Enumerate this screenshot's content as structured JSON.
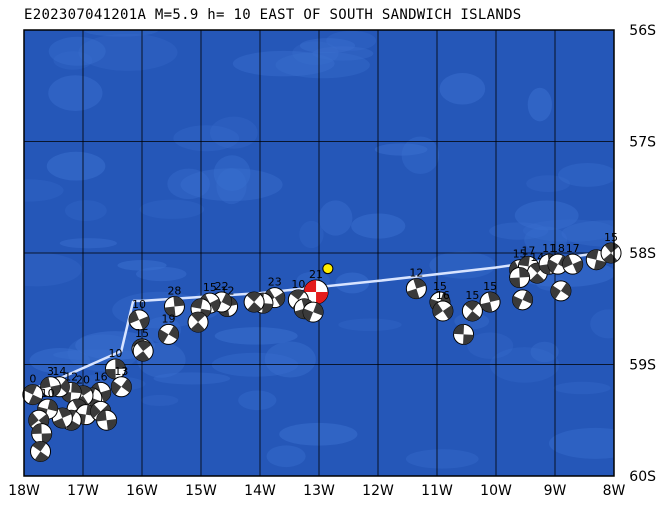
{
  "title": "E202307041201A M=5.9 h= 10 EAST OF SOUTH SANDWICH ISLANDS",
  "map": {
    "lon_range": [
      -18,
      -8
    ],
    "lat_range": [
      -60,
      -56
    ],
    "lon_ticks": [
      "18W",
      "17W",
      "16W",
      "15W",
      "14W",
      "13W",
      "12W",
      "11W",
      "10W",
      "9W",
      "8W"
    ],
    "lat_ticks": [
      "56S",
      "57S",
      "58S",
      "59S",
      "60S"
    ],
    "colors": {
      "ocean": "#2557b8",
      "ocean_light": "#3a6fcf",
      "grid": "#000000",
      "trench_line": "#d8e4ff",
      "main_event": "#e31c1c",
      "epicenter": "#ffee00"
    }
  },
  "trench": [
    [
      -16.15,
      -58.43
    ],
    [
      -16.0,
      -58.43
    ],
    [
      -14.0,
      -58.36
    ],
    [
      -12.0,
      -58.25
    ],
    [
      -10.0,
      -58.13
    ],
    [
      -8.0,
      -57.98
    ]
  ],
  "trench_west": [
    [
      -16.15,
      -58.43
    ],
    [
      -16.35,
      -58.88
    ],
    [
      -17.5,
      -59.15
    ],
    [
      -18.0,
      -59.25
    ]
  ],
  "epicenter": {
    "lon": -12.85,
    "lat": -58.14
  },
  "events": [
    {
      "lon": -13.05,
      "lat": -58.35,
      "num": "21",
      "main": true
    },
    {
      "lon": -13.35,
      "lat": -58.42,
      "num": "10"
    },
    {
      "lon": -13.25,
      "lat": -58.5,
      "num": ""
    },
    {
      "lon": -13.1,
      "lat": -58.53,
      "num": ""
    },
    {
      "lon": -13.75,
      "lat": -58.4,
      "num": "23"
    },
    {
      "lon": -13.95,
      "lat": -58.45,
      "num": ""
    },
    {
      "lon": -14.1,
      "lat": -58.44,
      "num": ""
    },
    {
      "lon": -14.55,
      "lat": -58.48,
      "num": "12"
    },
    {
      "lon": -14.65,
      "lat": -58.44,
      "num": "22"
    },
    {
      "lon": -14.85,
      "lat": -58.45,
      "num": "15"
    },
    {
      "lon": -15.0,
      "lat": -58.5,
      "num": ""
    },
    {
      "lon": -15.05,
      "lat": -58.62,
      "num": ""
    },
    {
      "lon": -15.45,
      "lat": -58.48,
      "num": "28"
    },
    {
      "lon": -15.55,
      "lat": -58.73,
      "num": "19"
    },
    {
      "lon": -16.05,
      "lat": -58.6,
      "num": "10"
    },
    {
      "lon": -16.0,
      "lat": -58.86,
      "num": "15"
    },
    {
      "lon": -15.98,
      "lat": -58.88,
      "num": ""
    },
    {
      "lon": -16.45,
      "lat": -59.04,
      "num": "10"
    },
    {
      "lon": -16.35,
      "lat": -59.2,
      "num": "13"
    },
    {
      "lon": -16.7,
      "lat": -59.25,
      "num": "16"
    },
    {
      "lon": -16.85,
      "lat": -59.3,
      "num": ""
    },
    {
      "lon": -17.0,
      "lat": -59.28,
      "num": "20"
    },
    {
      "lon": -17.2,
      "lat": -59.25,
      "num": "12"
    },
    {
      "lon": -17.4,
      "lat": -59.2,
      "num": "14"
    },
    {
      "lon": -17.55,
      "lat": -59.2,
      "num": "3"
    },
    {
      "lon": -17.85,
      "lat": -59.27,
      "num": "0"
    },
    {
      "lon": -17.1,
      "lat": -59.4,
      "num": ""
    },
    {
      "lon": -16.95,
      "lat": -59.45,
      "num": ""
    },
    {
      "lon": -16.7,
      "lat": -59.42,
      "num": ""
    },
    {
      "lon": -16.6,
      "lat": -59.5,
      "num": ""
    },
    {
      "lon": -17.2,
      "lat": -59.5,
      "num": ""
    },
    {
      "lon": -17.35,
      "lat": -59.48,
      "num": ""
    },
    {
      "lon": -17.6,
      "lat": -59.4,
      "num": "10"
    },
    {
      "lon": -17.75,
      "lat": -59.5,
      "num": ""
    },
    {
      "lon": -17.7,
      "lat": -59.62,
      "num": ""
    },
    {
      "lon": -17.72,
      "lat": -59.78,
      "num": ""
    },
    {
      "lon": -11.35,
      "lat": -58.32,
      "num": "12"
    },
    {
      "lon": -10.95,
      "lat": -58.44,
      "num": "15"
    },
    {
      "lon": -10.9,
      "lat": -58.52,
      "num": "16"
    },
    {
      "lon": -10.55,
      "lat": -58.73,
      "num": ""
    },
    {
      "lon": -10.4,
      "lat": -58.52,
      "num": "15"
    },
    {
      "lon": -10.1,
      "lat": -58.44,
      "num": "15"
    },
    {
      "lon": -9.55,
      "lat": -58.42,
      "num": ""
    },
    {
      "lon": -9.6,
      "lat": -58.15,
      "num": "15"
    },
    {
      "lon": -9.45,
      "lat": -58.12,
      "num": "17"
    },
    {
      "lon": -9.3,
      "lat": -58.18,
      "num": "14"
    },
    {
      "lon": -9.1,
      "lat": -58.1,
      "num": "11"
    },
    {
      "lon": -8.95,
      "lat": -58.1,
      "num": "18"
    },
    {
      "lon": -8.7,
      "lat": -58.1,
      "num": "17"
    },
    {
      "lon": -8.3,
      "lat": -58.06,
      "num": ""
    },
    {
      "lon": -8.05,
      "lat": -58.0,
      "num": "15"
    },
    {
      "lon": -9.6,
      "lat": -58.22,
      "num": ""
    },
    {
      "lon": -8.9,
      "lat": -58.34,
      "num": ""
    }
  ]
}
